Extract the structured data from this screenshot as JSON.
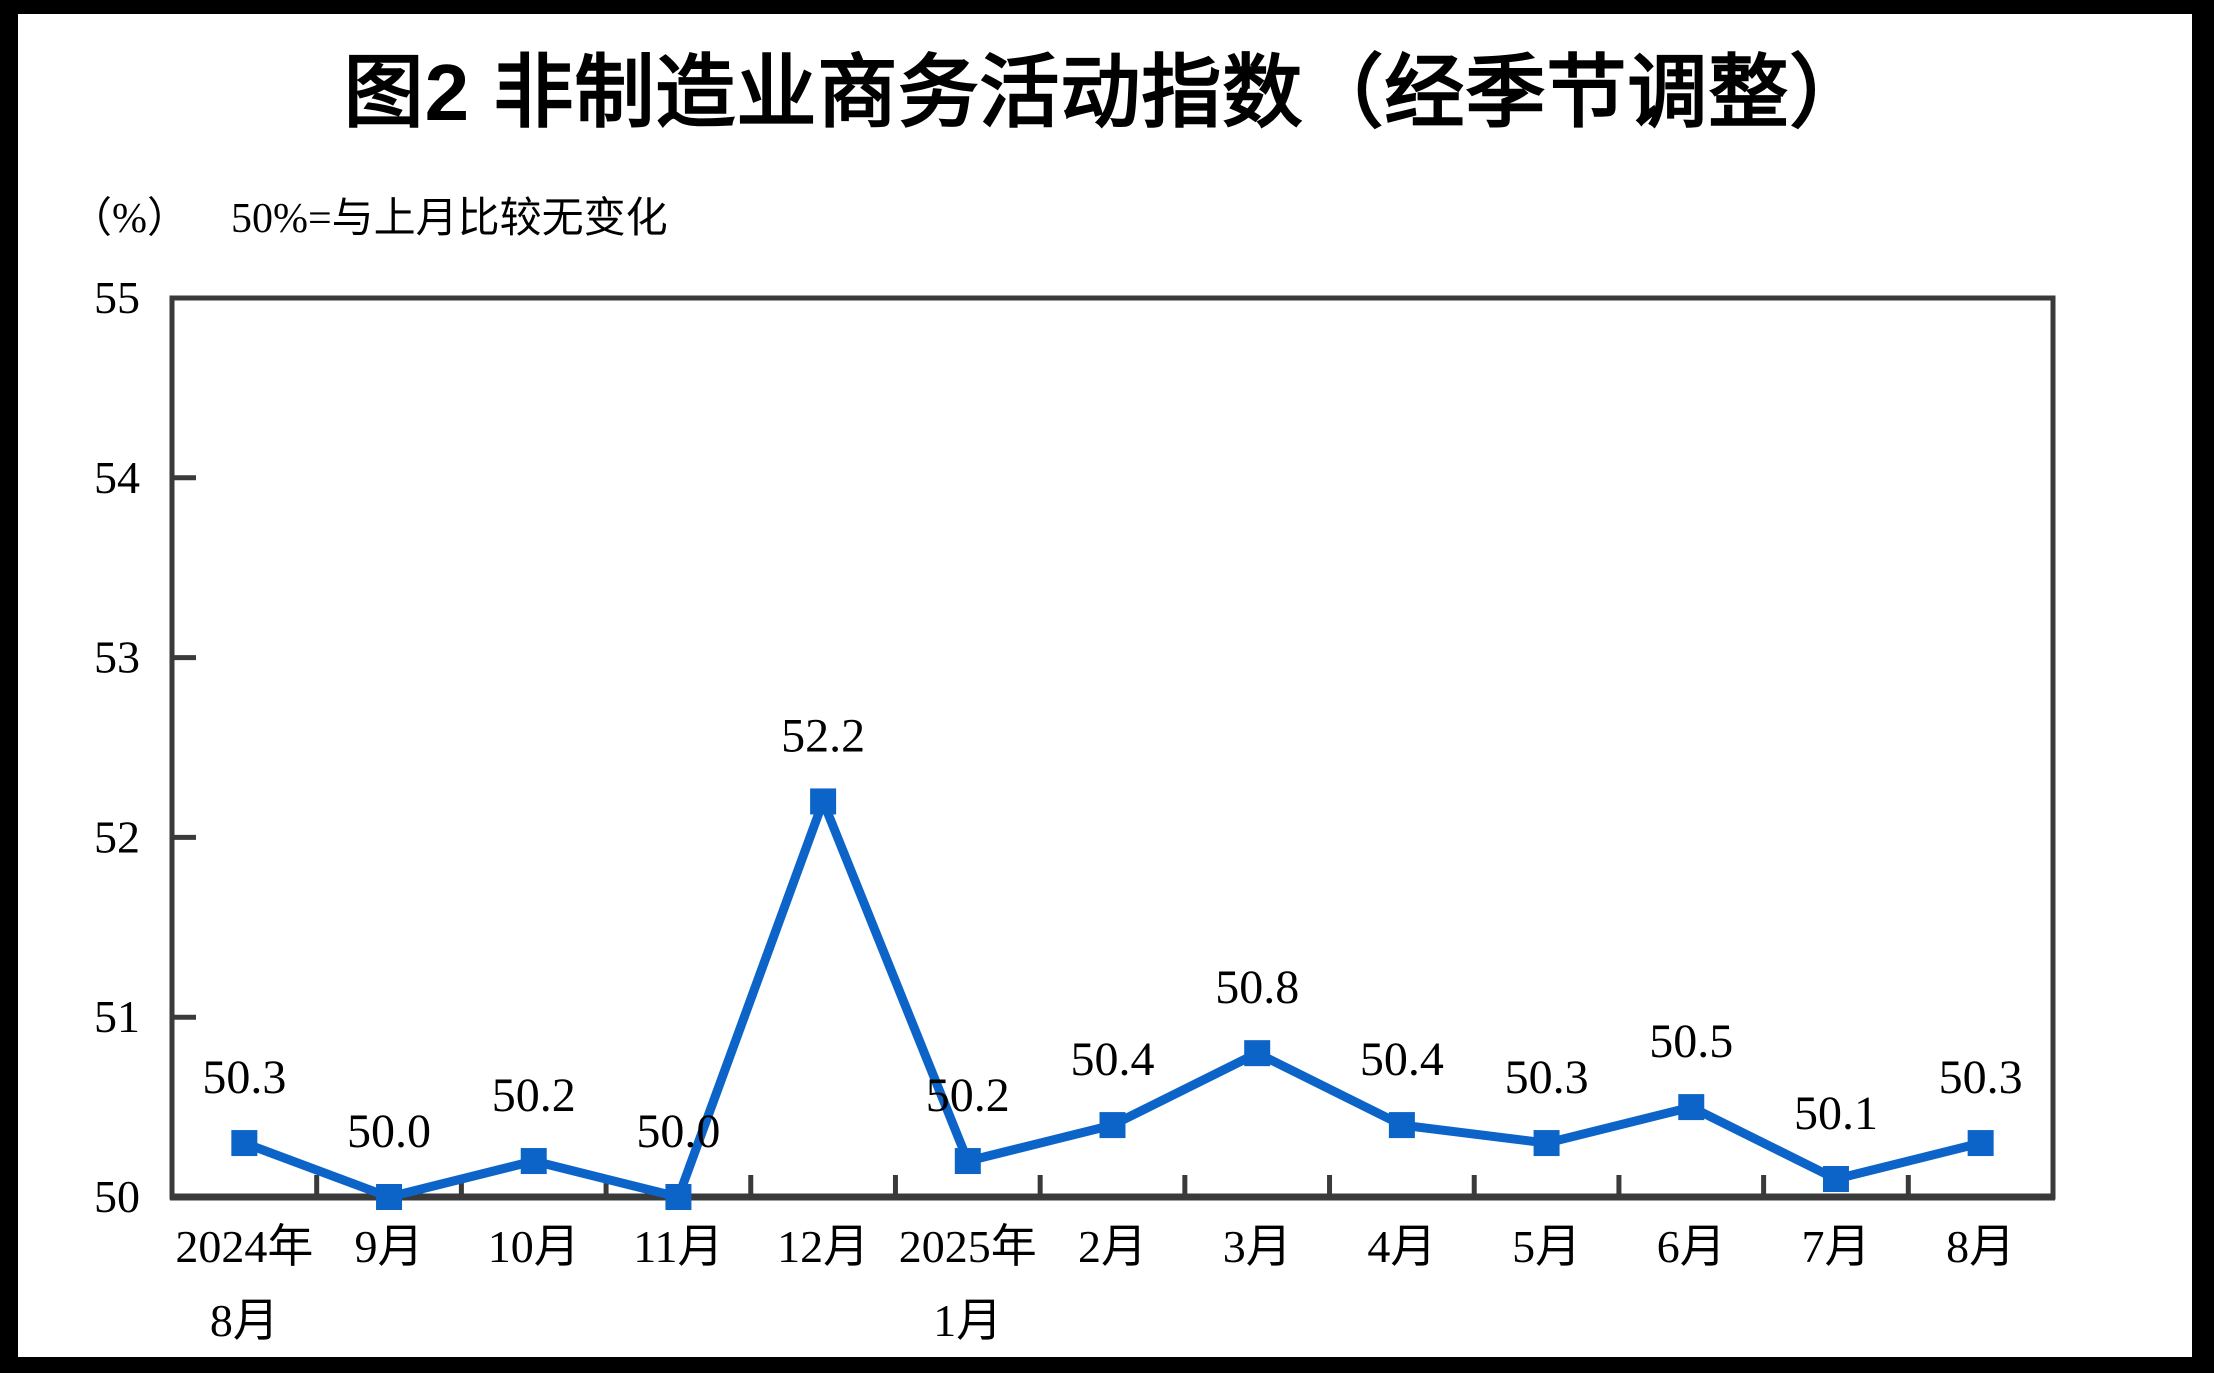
{
  "page": {
    "title": "图2 非制造业商务活动指数（经季节调整）",
    "unit_label": "（%）",
    "note": "50%=与上月比较无变化"
  },
  "chart_data": {
    "type": "line",
    "title": "图2 非制造业商务活动指数（经季节调整）",
    "unit_label": "（%）",
    "note": "50%=与上月比较无变化",
    "categories": [
      "2024年\n8月",
      "9月",
      "10月",
      "11月",
      "12月",
      "2025年\n1月",
      "2月",
      "3月",
      "4月",
      "5月",
      "6月",
      "7月",
      "8月"
    ],
    "values": [
      50.3,
      50.0,
      50.2,
      50.0,
      52.2,
      50.2,
      50.4,
      50.8,
      50.4,
      50.3,
      50.5,
      50.1,
      50.3
    ],
    "data_labels": [
      "50.3",
      "50.0",
      "50.2",
      "50.0",
      "52.2",
      "50.2",
      "50.4",
      "50.8",
      "50.4",
      "50.3",
      "50.5",
      "50.1",
      "50.3"
    ],
    "ylim": [
      50,
      55
    ],
    "yticks": [
      50,
      51,
      52,
      53,
      54,
      55
    ],
    "xlabel": "",
    "ylabel": "",
    "grid": false,
    "legend": "none",
    "marker": "square",
    "line_color": "#0D64C8",
    "axis_color": "#3A3A3A",
    "text_color": "#000000",
    "background": "#FFFFFF",
    "frame_color": "#000000"
  }
}
